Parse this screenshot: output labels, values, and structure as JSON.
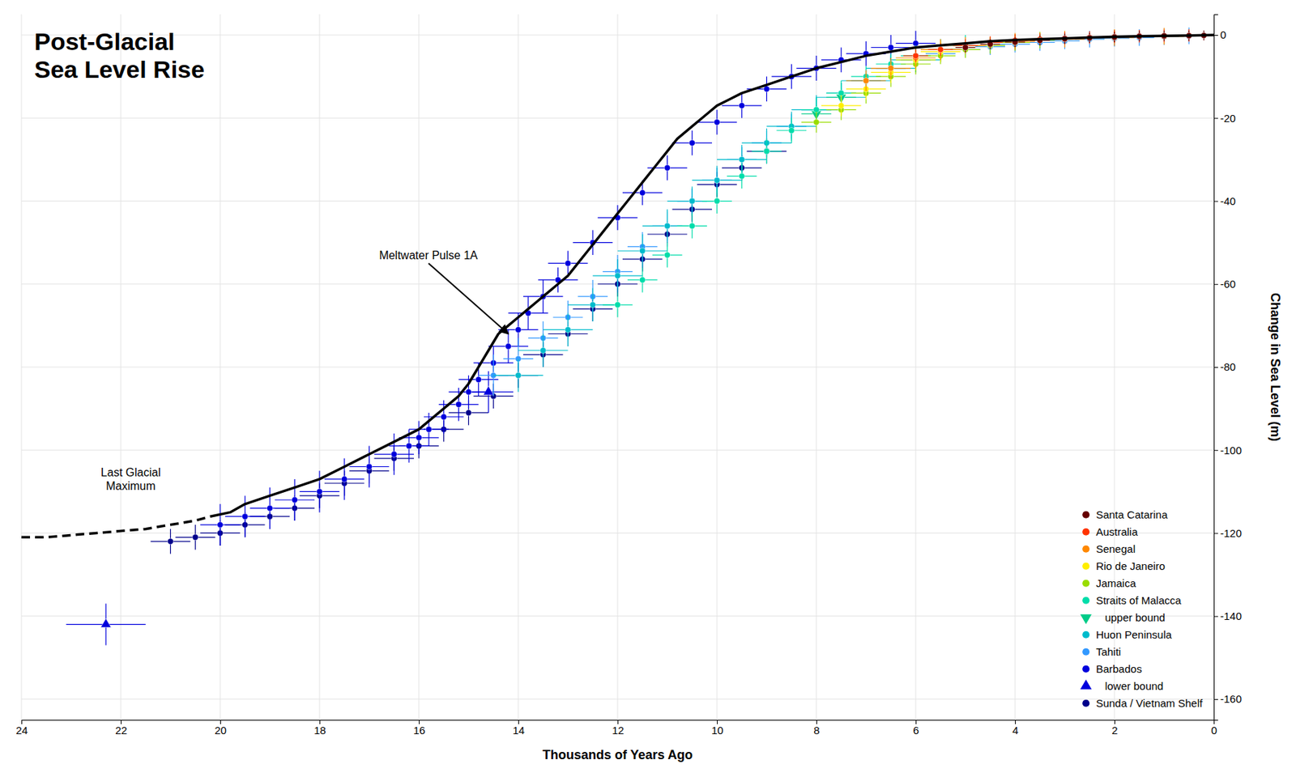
{
  "chart_data": {
    "type": "scatter",
    "title": "Post-Glacial\nSea Level Rise",
    "xlabel": "Thousands of Years Ago",
    "ylabel": "Change in Sea Level (m)",
    "xlim": [
      24,
      0
    ],
    "ylim": [
      -165,
      5
    ],
    "xticks": [
      0,
      2,
      4,
      6,
      8,
      10,
      12,
      14,
      16,
      18,
      20,
      22,
      24
    ],
    "yticks": [
      -160,
      -140,
      -120,
      -100,
      -80,
      -60,
      -40,
      -20,
      0
    ],
    "grid": true,
    "legend": "lower right",
    "series": [
      {
        "name": "Santa Catarina",
        "color": "#660000",
        "marker": "circle",
        "x": [
          5.0,
          4.5,
          4.0,
          3.5,
          3.0,
          2.5,
          2.0,
          1.5,
          1.0,
          0.5,
          0.2
        ],
        "values": [
          -3.0,
          -2.2,
          -1.7,
          -1.3,
          -0.9,
          -0.7,
          -0.5,
          -0.3,
          -0.2,
          -0.15,
          -0.1
        ],
        "x_error": [
          0.2,
          0.2,
          0.2,
          0.2,
          0.2,
          0.2,
          0.2,
          0.2,
          0.2,
          0.2,
          0.2
        ],
        "y_error": [
          1.2,
          1.2,
          1.2,
          1.2,
          1.2,
          1.2,
          1.2,
          1.2,
          1.2,
          1.2,
          1.2
        ]
      },
      {
        "name": "Australia",
        "color": "#ff3300",
        "marker": "circle",
        "x": [
          6.0,
          5.5,
          5.0,
          4.5,
          4.0,
          3.5,
          3.0,
          2.5,
          2.0,
          1.5,
          1.0,
          0.5
        ],
        "values": [
          -5,
          -3.5,
          -2.5,
          -1.8,
          -1.3,
          -1.0,
          -0.8,
          -0.6,
          -0.4,
          -0.3,
          -0.2,
          -0.1
        ],
        "x_error": [
          0.25,
          0.25,
          0.25,
          0.25,
          0.25,
          0.25,
          0.25,
          0.25,
          0.25,
          0.25,
          0.25,
          0.25
        ],
        "y_error": [
          1.5,
          1.5,
          1.5,
          1.5,
          1.5,
          1.5,
          1.5,
          1.5,
          1.5,
          1.5,
          1.5,
          1.5
        ]
      },
      {
        "name": "Senegal",
        "color": "#ff8800",
        "marker": "circle",
        "x": [
          7.0,
          6.5,
          6.0,
          5.5,
          5.0,
          4.0,
          3.0,
          2.0,
          1.0
        ],
        "values": [
          -11,
          -8,
          -5.5,
          -3.5,
          -2.5,
          -1.5,
          -1.0,
          -0.6,
          -0.3
        ],
        "x_error": [
          0.4,
          0.4,
          0.4,
          0.4,
          0.4,
          0.4,
          0.4,
          0.4,
          0.4
        ],
        "y_error": [
          2.5,
          2.5,
          2.5,
          2.5,
          2.0,
          2.0,
          2.0,
          2.0,
          2.0
        ]
      },
      {
        "name": "Rio de Janeiro",
        "color": "#ffee00",
        "marker": "circle",
        "x": [
          7.5,
          7.0,
          6.5,
          6.0,
          5.5
        ],
        "values": [
          -17,
          -13,
          -9,
          -6,
          -4
        ],
        "x_error": [
          0.4,
          0.4,
          0.4,
          0.4,
          0.4
        ],
        "y_error": [
          2.5,
          2.5,
          2.5,
          2.5,
          2.5
        ]
      },
      {
        "name": "Jamaica",
        "color": "#99dd00",
        "marker": "circle",
        "x": [
          8.0,
          7.5,
          7.0,
          6.5,
          6.0,
          5.5,
          5.0,
          4.5,
          4.0,
          3.5
        ],
        "values": [
          -21,
          -18,
          -14,
          -10,
          -7,
          -5,
          -3.5,
          -2.5,
          -1.8,
          -1.2
        ],
        "x_error": [
          0.3,
          0.3,
          0.3,
          0.3,
          0.3,
          0.3,
          0.3,
          0.3,
          0.3,
          0.3
        ],
        "y_error": [
          2.5,
          2.5,
          2.5,
          2.5,
          2.5,
          2.0,
          2.0,
          2.0,
          2.0,
          2.0
        ]
      },
      {
        "name": "Straits of Malacca",
        "color": "#00ddaa",
        "marker": "circle",
        "x": [
          12.0,
          11.5,
          11.0,
          10.5,
          10.0,
          9.5,
          9.0,
          8.5,
          8.0,
          7.5,
          7.0,
          6.5,
          6.0,
          5.5,
          5.0
        ],
        "values": [
          -65,
          -59,
          -53,
          -46,
          -40,
          -34,
          -28,
          -23,
          -18,
          -14,
          -10,
          -7,
          -5,
          -3.5,
          -2.5
        ],
        "x_error": [
          0.3,
          0.3,
          0.3,
          0.3,
          0.3,
          0.3,
          0.3,
          0.3,
          0.3,
          0.3,
          0.3,
          0.3,
          0.3,
          0.3,
          0.3
        ],
        "y_error": [
          3.0,
          3.0,
          3.0,
          3.0,
          3.0,
          3.0,
          3.0,
          3.0,
          3.0,
          3.0,
          2.5,
          2.5,
          2.5,
          2.5,
          2.5
        ]
      },
      {
        "name": "   upper bound",
        "color": "#00cc88",
        "marker": "triangle-down",
        "x": [
          8.0,
          7.5
        ],
        "values": [
          -19,
          -15
        ],
        "x_error": [
          0.3,
          0.3
        ],
        "y_error": [
          2.0,
          2.0
        ]
      },
      {
        "name": "Huon Peninsula",
        "color": "#00bbcc",
        "marker": "circle",
        "x": [
          14.0,
          13.5,
          13.0,
          12.5,
          12.0,
          11.5,
          11.0,
          10.5,
          10.0,
          9.5,
          9.0,
          8.5,
          8.0,
          7.5,
          7.0,
          6.5,
          6.0
        ],
        "values": [
          -82,
          -76,
          -71,
          -65,
          -58,
          -52,
          -46,
          -40,
          -35,
          -30,
          -26,
          -22,
          -18,
          -15,
          -11,
          -8,
          -6
        ],
        "x_error": [
          0.5,
          0.5,
          0.5,
          0.5,
          0.5,
          0.5,
          0.5,
          0.5,
          0.5,
          0.5,
          0.5,
          0.5,
          0.5,
          0.5,
          0.5,
          0.5,
          0.5
        ],
        "y_error": [
          4.0,
          4.0,
          4.0,
          4.0,
          4.0,
          4.0,
          4.0,
          3.5,
          3.5,
          3.5,
          3.5,
          3.5,
          3.5,
          3.5,
          3.0,
          3.0,
          3.0
        ]
      },
      {
        "name": "Tahiti",
        "color": "#3399ff",
        "marker": "circle",
        "x": [
          14.5,
          14.0,
          13.5,
          13.0,
          12.5,
          12.0,
          11.5,
          11.0,
          10.5,
          10.0,
          9.5,
          9.0,
          8.5,
          8.0,
          7.5,
          7.0,
          6.5,
          6.0,
          5.5,
          5.0,
          4.5,
          4.0,
          3.5,
          3.0,
          2.5,
          2.0,
          1.5,
          1.0,
          0.5
        ],
        "values": [
          -82,
          -78,
          -73,
          -68,
          -63,
          -57,
          -51,
          -46,
          -40,
          -35,
          -30,
          -26,
          -22,
          -18,
          -14,
          -11,
          -8,
          -6,
          -4.5,
          -3.5,
          -2.8,
          -2.2,
          -1.8,
          -1.4,
          -1.0,
          -0.8,
          -0.6,
          -0.4,
          -0.2
        ],
        "x_error": [
          0.3,
          0.3,
          0.3,
          0.3,
          0.3,
          0.3,
          0.3,
          0.3,
          0.3,
          0.3,
          0.3,
          0.3,
          0.3,
          0.3,
          0.3,
          0.3,
          0.3,
          0.3,
          0.3,
          0.3,
          0.3,
          0.3,
          0.3,
          0.3,
          0.3,
          0.3,
          0.3,
          0.3,
          0.3
        ],
        "y_error": [
          5.0,
          5.0,
          4.0,
          4.0,
          4.0,
          4.0,
          3.5,
          3.5,
          3.0,
          3.0,
          3.0,
          3.0,
          3.0,
          3.0,
          2.5,
          2.5,
          2.5,
          2.5,
          2.0,
          2.0,
          2.0,
          2.0,
          2.0,
          2.0,
          2.0,
          2.0,
          2.0,
          2.0,
          2.0
        ]
      },
      {
        "name": "Barbados",
        "color": "#0000dd",
        "marker": "circle",
        "x": [
          20.0,
          19.5,
          19.0,
          18.5,
          18.0,
          17.5,
          17.0,
          16.5,
          16.2,
          16.0,
          15.8,
          15.5,
          15.2,
          15.0,
          14.8,
          14.5,
          14.2,
          14.0,
          13.8,
          13.5,
          13.2,
          13.0,
          12.5,
          12.0,
          11.5,
          11.0,
          10.5,
          10.0,
          9.5,
          9.0,
          8.5,
          8.0,
          7.5,
          7.0,
          6.5,
          6.0
        ],
        "values": [
          -118,
          -116,
          -114,
          -112,
          -110,
          -107,
          -104,
          -101,
          -99,
          -97,
          -95,
          -92,
          -89,
          -86,
          -83,
          -79,
          -75,
          -71,
          -67,
          -63,
          -59,
          -55,
          -50,
          -44,
          -38,
          -32,
          -26,
          -21,
          -17,
          -13,
          -10,
          -8,
          -6,
          -4.5,
          -3,
          -2
        ],
        "x_error": [
          0.4,
          0.4,
          0.4,
          0.4,
          0.4,
          0.4,
          0.4,
          0.4,
          0.4,
          0.4,
          0.4,
          0.4,
          0.4,
          0.4,
          0.4,
          0.4,
          0.4,
          0.4,
          0.4,
          0.4,
          0.4,
          0.4,
          0.4,
          0.4,
          0.4,
          0.4,
          0.4,
          0.4,
          0.4,
          0.4,
          0.4,
          0.4,
          0.4,
          0.4,
          0.4,
          0.4
        ],
        "y_error": [
          5.0,
          5.0,
          5.0,
          5.0,
          5.0,
          5.0,
          5.0,
          5.0,
          4.0,
          4.0,
          4.0,
          4.0,
          4.0,
          4.0,
          4.0,
          4.0,
          4.0,
          4.0,
          4.0,
          4.0,
          3.0,
          3.0,
          3.0,
          3.0,
          3.0,
          3.0,
          3.0,
          3.0,
          3.0,
          3.0,
          3.0,
          3.0,
          3.0,
          3.0,
          3.0,
          3.0
        ]
      },
      {
        "name": "   lower bound",
        "color": "#0000dd",
        "marker": "triangle-up",
        "x": [
          14.6,
          22.3
        ],
        "values": [
          -86,
          -142
        ],
        "x_error": [
          0.5,
          0.8
        ],
        "y_error": [
          5.0,
          5.0
        ]
      },
      {
        "name": "Sunda / Vietnam Shelf",
        "color": "#00008b",
        "marker": "circle",
        "x": [
          21.0,
          20.5,
          20.0,
          19.5,
          19.0,
          18.5,
          18.0,
          17.5,
          17.0,
          16.5,
          16.0,
          15.5,
          15.0,
          14.5,
          14.0,
          13.5,
          13.0,
          12.5,
          12.0,
          11.5,
          11.0,
          10.5,
          10.0,
          9.5,
          9.0
        ],
        "values": [
          -122,
          -121,
          -120,
          -118,
          -116,
          -114,
          -111,
          -108,
          -105,
          -102,
          -99,
          -95,
          -91,
          -87,
          -82,
          -77,
          -72,
          -66,
          -60,
          -54,
          -48,
          -42,
          -36,
          -32,
          -28
        ],
        "x_error": [
          0.4,
          0.4,
          0.4,
          0.4,
          0.4,
          0.4,
          0.4,
          0.4,
          0.4,
          0.4,
          0.4,
          0.4,
          0.4,
          0.4,
          0.4,
          0.4,
          0.4,
          0.4,
          0.4,
          0.4,
          0.4,
          0.4,
          0.4,
          0.4,
          0.4
        ],
        "y_error": [
          3.0,
          3.0,
          3.0,
          3.0,
          3.0,
          3.0,
          3.0,
          3.0,
          3.0,
          3.0,
          3.0,
          3.0,
          3.0,
          3.0,
          3.0,
          3.0,
          3.0,
          3.0,
          3.0,
          3.0,
          3.0,
          3.0,
          3.0,
          3.0,
          3.0
        ]
      },
      {
        "type": "line",
        "color": "#000000",
        "line_style": "dashed",
        "x": [
          24,
          23.5,
          23,
          22.5,
          22,
          21.5,
          21,
          20.5,
          20.2
        ],
        "values": [
          -121,
          -121,
          -120.5,
          -120,
          -119.5,
          -119,
          -118,
          -117,
          -116
        ]
      },
      {
        "type": "line",
        "color": "#000000",
        "line_style": "solid",
        "x": [
          20.2,
          19.8,
          19.5,
          19.0,
          18.5,
          18.0,
          17.5,
          17.0,
          16.5,
          16.0,
          15.5,
          15.2,
          15.0,
          14.8,
          14.6,
          14.4,
          14.2,
          14.0,
          13.8,
          13.6,
          13.4,
          13.2,
          13.0,
          12.8,
          12.6,
          12.4,
          12.2,
          12.0,
          11.8,
          11.6,
          11.4,
          11.2,
          11.0,
          10.8,
          10.5,
          10.2,
          10.0,
          9.5,
          9.0,
          8.5,
          8.0,
          7.5,
          7.0,
          6.5,
          6.0,
          5.5,
          5.0,
          4.5,
          4.0,
          3.5,
          3.0,
          2.5,
          2.0,
          1.5,
          1.0,
          0.5,
          0.0
        ],
        "values": [
          -116,
          -115,
          -113,
          -111,
          -109,
          -107,
          -104,
          -101,
          -98,
          -95,
          -90,
          -87,
          -84,
          -80,
          -76,
          -72,
          -70,
          -68,
          -66,
          -64,
          -62,
          -60,
          -58,
          -55,
          -52,
          -49,
          -46,
          -43,
          -40,
          -37,
          -34,
          -31,
          -28,
          -25,
          -22,
          -19,
          -17,
          -14,
          -12,
          -10,
          -8,
          -6.5,
          -5,
          -4,
          -3,
          -2.5,
          -2,
          -1.5,
          -1.2,
          -1.0,
          -0.8,
          -0.6,
          -0.4,
          -0.3,
          -0.2,
          -0.1,
          0
        ]
      }
    ],
    "annotations": [
      {
        "text": "Meltwater Pulse 1A",
        "x": 16.8,
        "y": -53,
        "arrow_x": 14.2,
        "arrow_y": -72
      },
      {
        "text": "Last Glacial\nMaximum",
        "x": 21.8,
        "y": -107
      }
    ]
  }
}
